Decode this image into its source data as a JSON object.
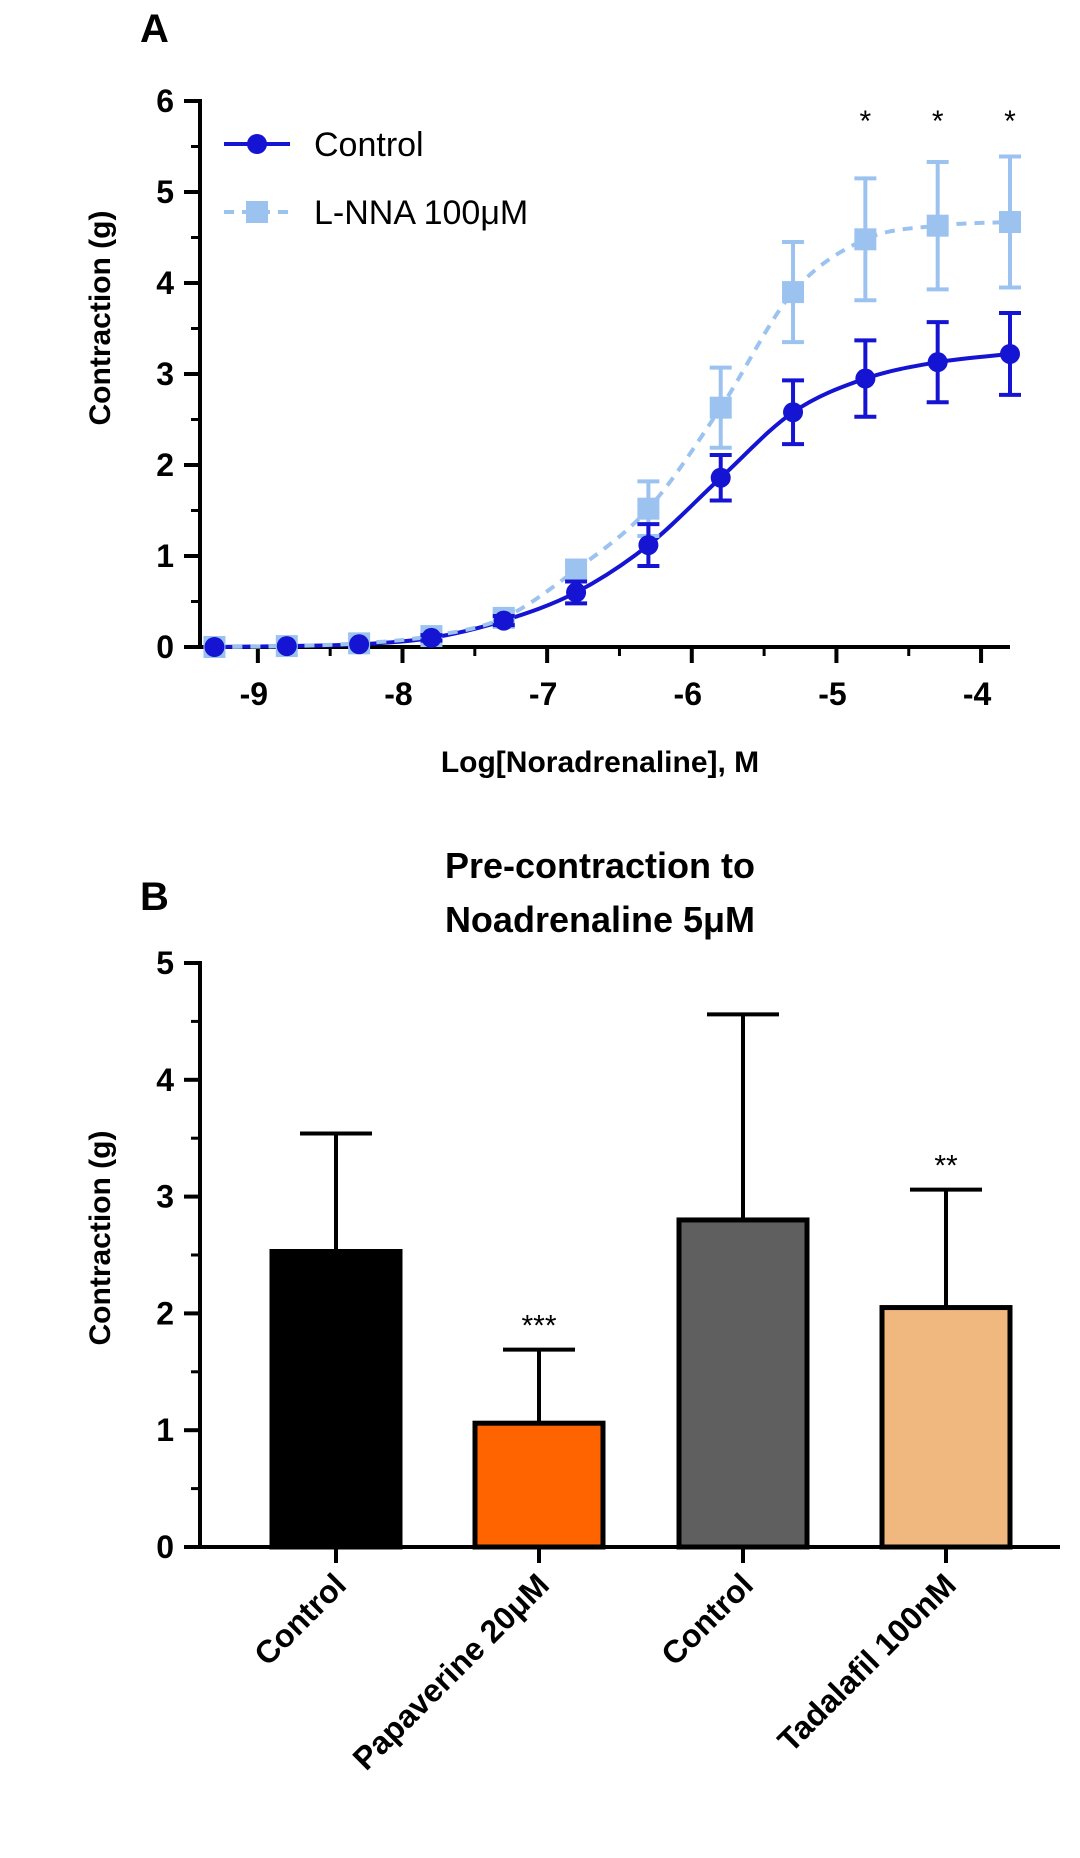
{
  "chart_data": [
    {
      "panel": "A",
      "type": "line",
      "title": "",
      "xlabel": "Log[Noradrenaline], M",
      "ylabel": "Contraction (g)",
      "xlim": [
        -9.4,
        -3.8
      ],
      "ylim": [
        0,
        6
      ],
      "x_ticks": [
        -9,
        -8,
        -7,
        -6,
        -5,
        -4
      ],
      "y_ticks": [
        0,
        1,
        2,
        3,
        4,
        5,
        6
      ],
      "legend_position": "top-left",
      "x": [
        -9.3,
        -8.8,
        -8.3,
        -7.8,
        -7.3,
        -6.8,
        -6.3,
        -5.8,
        -5.3,
        -4.8,
        -4.3,
        -3.8
      ],
      "series": [
        {
          "name": "Control",
          "color": "#1414d2",
          "line": "solid",
          "marker": "circle",
          "values": [
            0.0,
            0.01,
            0.03,
            0.1,
            0.29,
            0.6,
            1.12,
            1.86,
            2.58,
            2.95,
            3.13,
            3.22
          ],
          "errors": [
            0.0,
            0.0,
            0.0,
            0.03,
            0.05,
            0.12,
            0.23,
            0.25,
            0.35,
            0.42,
            0.44,
            0.45
          ]
        },
        {
          "name": "L-NNA 100μM",
          "color": "#9cc3f0",
          "line": "dashed",
          "marker": "square",
          "values": [
            0.0,
            0.01,
            0.04,
            0.12,
            0.32,
            0.85,
            1.52,
            2.63,
            3.9,
            4.48,
            4.63,
            4.67
          ],
          "errors": [
            0.0,
            0.0,
            0.0,
            0.04,
            0.07,
            0.1,
            0.3,
            0.44,
            0.55,
            0.67,
            0.7,
            0.72
          ]
        }
      ],
      "significance": [
        {
          "x": -4.8,
          "label": "*"
        },
        {
          "x": -4.3,
          "label": "*"
        },
        {
          "x": -3.8,
          "label": "*"
        }
      ]
    },
    {
      "panel": "B",
      "type": "bar",
      "title": "Pre-contraction to Noadrenaline 5μM",
      "title_lines": [
        "Pre-contraction to",
        "Noadrenaline 5μM"
      ],
      "xlabel": "",
      "ylabel": "Contraction (g)",
      "ylim": [
        0,
        5
      ],
      "y_ticks": [
        0,
        1,
        2,
        3,
        4,
        5
      ],
      "categories": [
        "Control",
        "Papaverine 20μM",
        "Control",
        "Tadalafil 100nM"
      ],
      "values": [
        2.53,
        1.06,
        2.8,
        2.05
      ],
      "errors": [
        1.01,
        0.63,
        1.76,
        1.01
      ],
      "colors": [
        "#000000",
        "#ff6400",
        "#5f5f5f",
        "#f0b87e"
      ],
      "significance": [
        "",
        "***",
        "",
        "**"
      ]
    }
  ]
}
